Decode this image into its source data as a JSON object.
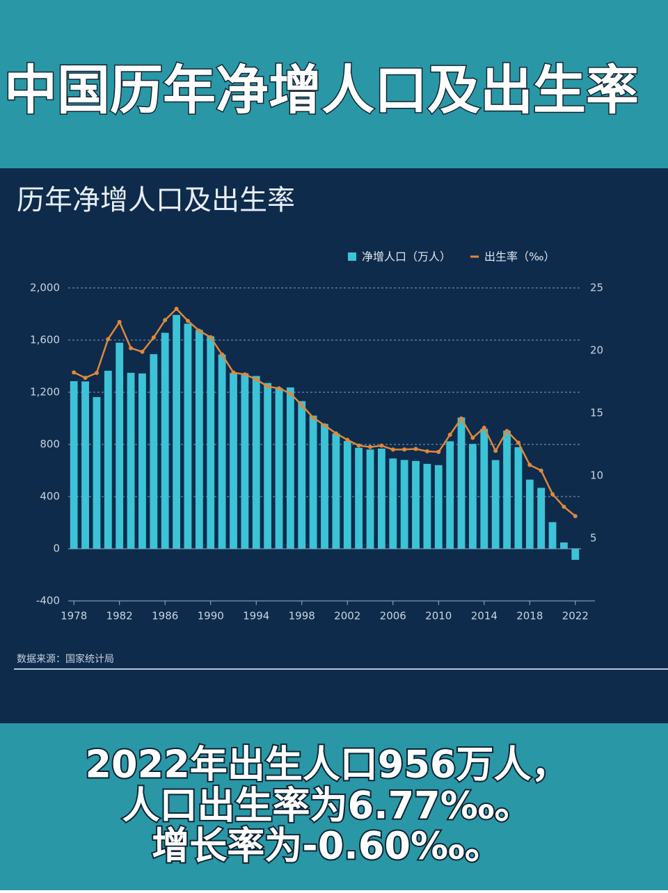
{
  "header": {
    "title": "中国历年净增人口及出生率"
  },
  "chart_data": {
    "type": "bar_line",
    "title": "历年净增人口及出生率",
    "categories": [
      "1978",
      null,
      null,
      null,
      "1982",
      null,
      null,
      null,
      "1986",
      null,
      null,
      null,
      "1990",
      null,
      null,
      null,
      "1994",
      null,
      null,
      null,
      "1998",
      null,
      null,
      null,
      "2002",
      null,
      null,
      null,
      "2006",
      null,
      null,
      null,
      "2010",
      null,
      null,
      null,
      "2014",
      null,
      null,
      null,
      "2018",
      null,
      null,
      null,
      "2022"
    ],
    "series": [
      {
        "name": "净增人口（万人）",
        "color": "#3cc3d6",
        "kind": "bar",
        "values": [
          1285,
          1283,
          1163,
          1365,
          1580,
          1349,
          1344,
          1492,
          1656,
          1793,
          1726,
          1678,
          1629,
          1490,
          1348,
          1346,
          1325,
          1271,
          1233,
          1237,
          1132,
          1021,
          957,
          884,
          826,
          774,
          761,
          768,
          692,
          681,
          673,
          651,
          641,
          824,
          1006,
          804,
          920,
          680,
          906,
          779,
          530,
          467,
          204,
          48,
          -85
        ]
      },
      {
        "name": "出生率（‰）",
        "color": "#e0883a",
        "kind": "line",
        "axis": "y2",
        "values": [
          18.25,
          17.82,
          18.21,
          20.91,
          22.28,
          20.19,
          19.9,
          21.04,
          22.43,
          23.33,
          22.37,
          21.58,
          21.06,
          19.68,
          18.24,
          18.09,
          17.7,
          17.12,
          16.98,
          16.57,
          15.64,
          14.64,
          14.03,
          13.38,
          12.86,
          12.41,
          12.29,
          12.4,
          12.09,
          12.1,
          12.14,
          11.95,
          11.9,
          13.27,
          14.57,
          13.03,
          13.83,
          11.99,
          13.57,
          12.64,
          10.86,
          10.41,
          8.52,
          7.52,
          6.77
        ]
      }
    ],
    "ylim": [
      -400,
      2000
    ],
    "yticks": [
      -400,
      0,
      400,
      800,
      {
        "value": 1200,
        "label": "1,200"
      },
      {
        "value": 1600,
        "label": "1,600"
      },
      {
        "value": 2000,
        "label": "2,000"
      }
    ],
    "y2lim": [
      0,
      25
    ],
    "y2ticks": [
      5,
      10,
      15,
      20,
      25
    ],
    "grid": true,
    "legend": "top-right",
    "source": "数据来源：国家统计局"
  },
  "caption": {
    "lines": [
      "2022年出生人口956万人，",
      "人口出生率为6.77‰。",
      "增长率为-0.60‰。"
    ]
  }
}
